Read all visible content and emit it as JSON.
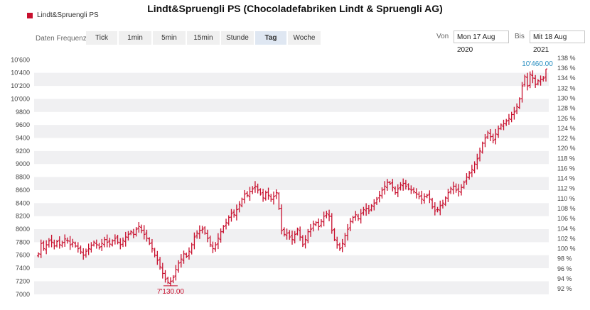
{
  "header": {
    "title": "Lindt&Spruengli PS (Chocoladefabriken Lindt & Spruengli AG)",
    "legend_label": "Lindt&Spruengli PS",
    "legend_color": "#c8102e"
  },
  "toolbar": {
    "freq_label": "Daten Frequenz",
    "tabs": [
      {
        "label": "Tick",
        "active": false
      },
      {
        "label": "1min",
        "active": false
      },
      {
        "label": "5min",
        "active": false
      },
      {
        "label": "15min",
        "active": false
      },
      {
        "label": "Stunde",
        "active": false
      },
      {
        "label": "Tag",
        "active": true
      },
      {
        "label": "Woche",
        "active": false
      }
    ],
    "from_label": "Von",
    "from_date": "Mon 17 Aug 2020",
    "to_label": "Bis",
    "to_date": "Mit 18 Aug 2021"
  },
  "chart_data": {
    "type": "ohlc",
    "series_name": "Lindt&Spruengli PS",
    "color": "#c8102e",
    "x_start": "17 Aug 2020",
    "x_end": "18 Aug 2021",
    "ylim": [
      6900,
      10800
    ],
    "y_ticks": [
      7000,
      7200,
      7400,
      7600,
      7800,
      8000,
      8200,
      8400,
      8600,
      8800,
      9000,
      9200,
      9400,
      9600,
      9800,
      10000,
      10200,
      10400,
      10600
    ],
    "y_tick_labels": [
      "7000",
      "7200",
      "7400",
      "7600",
      "7800",
      "8000",
      "8200",
      "8400",
      "8600",
      "8800",
      "9000",
      "9200",
      "9400",
      "9600",
      "9800",
      "10'000",
      "10'200",
      "10'400",
      "10'600"
    ],
    "y2_ticks": [
      92,
      94,
      96,
      98,
      100,
      102,
      104,
      106,
      108,
      110,
      112,
      114,
      116,
      118,
      120,
      122,
      124,
      126,
      128,
      130,
      132,
      134,
      136,
      138
    ],
    "y2_tick_labels": [
      "92 %",
      "94 %",
      "96 %",
      "98 %",
      "100 %",
      "102 %",
      "104 %",
      "106 %",
      "108 %",
      "110 %",
      "112 %",
      "114 %",
      "116 %",
      "118 %",
      "120 %",
      "122 %",
      "124 %",
      "126 %",
      "128 %",
      "130 %",
      "132 %",
      "134 %",
      "136 %",
      "138 %"
    ],
    "y2_base": 7700,
    "grid_bands": true,
    "annotations": [
      {
        "text": "10'460.00",
        "value": 10460,
        "color": "#2a8fc1",
        "kind": "high"
      },
      {
        "text": "7'130.00",
        "value": 7130,
        "color": "#c8102e",
        "kind": "low"
      }
    ],
    "closes": [
      7620,
      7780,
      7700,
      7760,
      7820,
      7800,
      7740,
      7810,
      7760,
      7790,
      7850,
      7820,
      7760,
      7800,
      7740,
      7700,
      7650,
      7600,
      7660,
      7700,
      7750,
      7800,
      7760,
      7720,
      7780,
      7840,
      7800,
      7770,
      7820,
      7860,
      7800,
      7760,
      7830,
      7880,
      7920,
      7960,
      7920,
      8000,
      8040,
      7980,
      7920,
      7860,
      7780,
      7700,
      7600,
      7520,
      7420,
      7320,
      7230,
      7180,
      7200,
      7260,
      7380,
      7480,
      7540,
      7620,
      7580,
      7660,
      7760,
      7880,
      7940,
      7980,
      8000,
      7940,
      7860,
      7760,
      7700,
      7760,
      7860,
      7960,
      8040,
      8100,
      8180,
      8240,
      8220,
      8300,
      8380,
      8460,
      8540,
      8520,
      8580,
      8620,
      8660,
      8600,
      8540,
      8480,
      8560,
      8520,
      8460,
      8500,
      8560,
      8320,
      7980,
      7920,
      7940,
      7880,
      7840,
      7920,
      8000,
      7880,
      7760,
      7840,
      7960,
      8000,
      8080,
      8100,
      8040,
      8120,
      8200,
      8240,
      8200,
      7980,
      7840,
      7760,
      7700,
      7780,
      7900,
      8000,
      8120,
      8180,
      8220,
      8160,
      8240,
      8300,
      8320,
      8280,
      8360,
      8400,
      8460,
      8520,
      8600,
      8660,
      8720,
      8700,
      8640,
      8560,
      8620,
      8680,
      8700,
      8660,
      8620,
      8600,
      8580,
      8540,
      8500,
      8460,
      8500,
      8520,
      8460,
      8340,
      8280,
      8300,
      8360,
      8400,
      8480,
      8560,
      8620,
      8660,
      8600,
      8580,
      8640,
      8720,
      8800,
      8860,
      8920,
      9000,
      9080,
      9200,
      9320,
      9400,
      9480,
      9420,
      9360,
      9460,
      9540,
      9600,
      9620,
      9660,
      9700,
      9760,
      9800,
      9880,
      10000,
      10200,
      10340,
      10200,
      10380,
      10320,
      10220,
      10280,
      10300,
      10320,
      10460
    ]
  }
}
